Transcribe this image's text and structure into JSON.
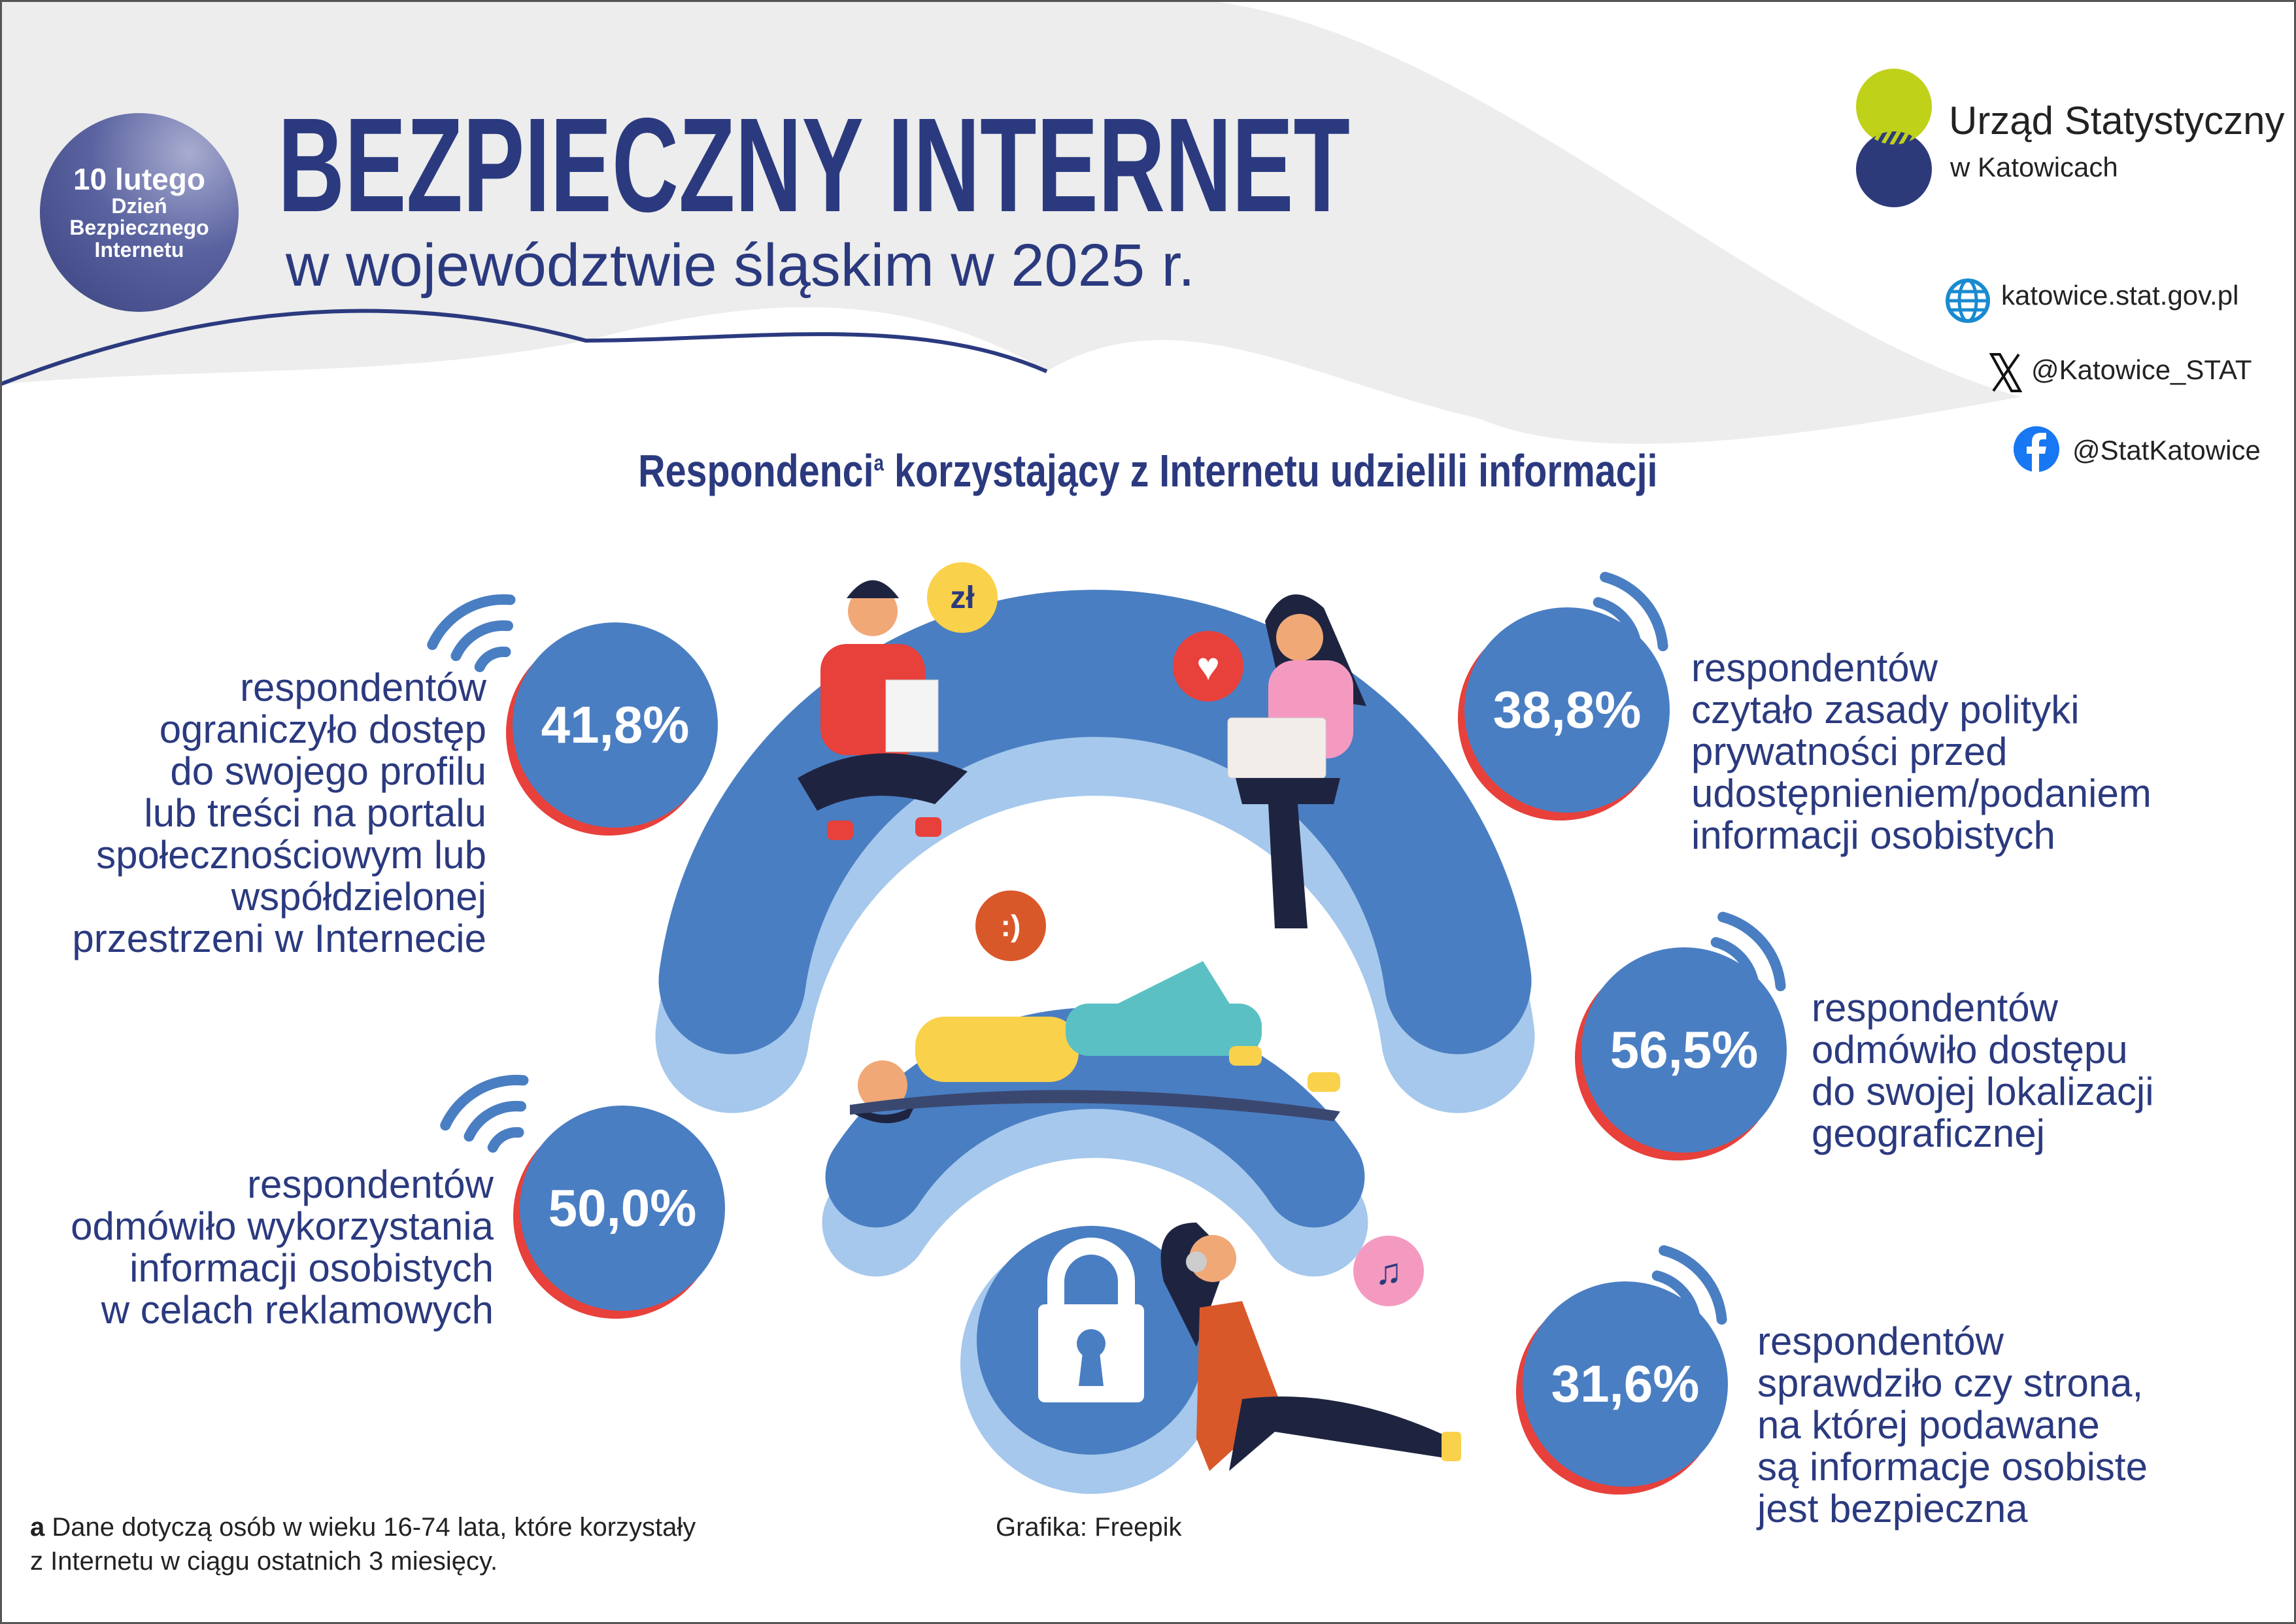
{
  "badge": {
    "date": "10 lutego",
    "line1": "Dzień",
    "line2": "Bezpiecznego",
    "line3": "Internetu"
  },
  "header": {
    "title": "BEZPIECZNY INTERNET",
    "subtitle": "w województwie śląskim w 2025 r."
  },
  "logo": {
    "name_line1": "Urząd Statystyczny",
    "name_line2": "w Katowicach",
    "colors": {
      "lime": "#C0D11A",
      "navy": "#2D3A7A"
    }
  },
  "links": [
    {
      "icon": "globe-icon",
      "text": "katowice.stat.gov.pl"
    },
    {
      "icon": "x-logo-icon",
      "text": "@Katowice_STAT"
    },
    {
      "icon": "facebook-icon",
      "text": "@StatKatowice"
    }
  ],
  "section": {
    "heading": "Respondenci",
    "heading_sup": "a",
    "heading_rest": " korzystający z Internetu udzielili informacji"
  },
  "stats": [
    {
      "value": "41,8%",
      "text": "respondentów\nograniczyło dostęp\ndo swojego profilu\nlub treści na portalu\nspołecznościowym lub\nwspółdzielonej\nprzestrzeni w Internecie"
    },
    {
      "value": "38,8%",
      "text": "respondentów\nczytało zasady polityki\nprywatności przed\nudostępnieniem/podaniem\ninformacji osobistych"
    },
    {
      "value": "56,5%",
      "text": "respondentów\nodmówiło dostępu\ndo swojej lokalizacji\ngeograficznej"
    },
    {
      "value": "50,0%",
      "text": "respondentów\nodmówiło wykorzystania\ninformacji osobistych\nw celach reklamowych"
    },
    {
      "value": "31,6%",
      "text": "respondentów\nsprawdziło czy strona,\nna której podawane\nsą informacje osobiste\njest bezpieczna"
    }
  ],
  "bubbles": {
    "money": "zł",
    "smile": ":)",
    "heart": "♥",
    "music": "♫"
  },
  "footnote": {
    "marker": "a",
    "line1": " Dane dotyczą osób w wieku 16-74 lata, które korzystały",
    "line2": "z Internetu w ciągu ostatnich 3 miesięcy."
  },
  "credit": "Grafika: Freepik",
  "colors": {
    "navy": "#2B3A7F",
    "circle_blue": "#4A7EC2",
    "circle_shadow": "#E8403A",
    "wifi_blue": "#4A7EC2",
    "wifi_light": "#A5C8EC",
    "header_grey": "#ECEDEC"
  }
}
